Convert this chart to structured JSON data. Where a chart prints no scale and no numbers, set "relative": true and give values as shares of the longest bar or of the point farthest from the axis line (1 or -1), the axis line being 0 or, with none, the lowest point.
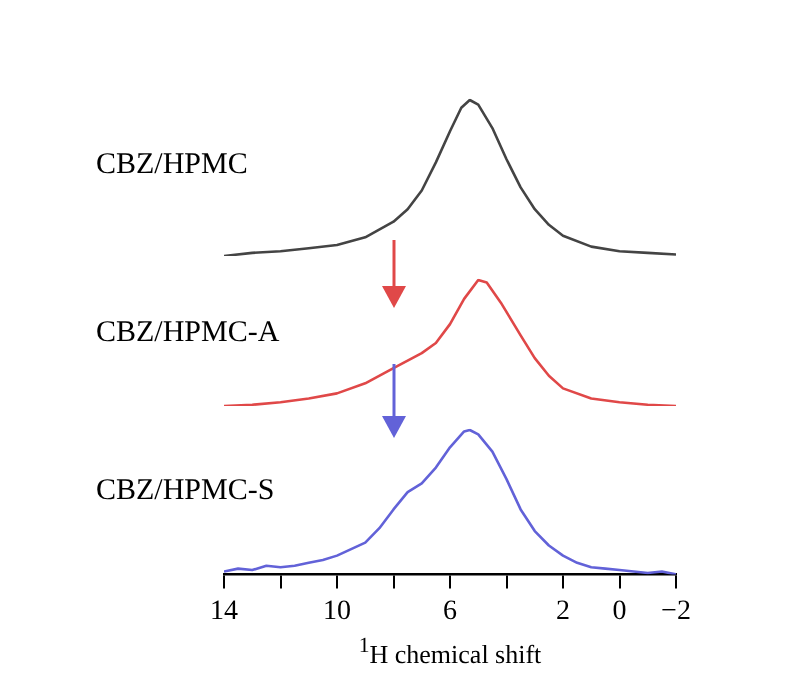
{
  "chart_data": [
    {
      "type": "line",
      "relative": true,
      "xlim": [
        14,
        -2
      ],
      "tick_labels": false,
      "x": [
        14,
        13,
        12,
        11,
        10,
        9,
        8,
        7.5,
        7,
        6.5,
        6,
        5.6,
        5.3,
        5,
        4.5,
        4,
        3.5,
        3,
        2.5,
        2,
        1,
        0,
        -1,
        -2
      ],
      "series": [
        {
          "name": "CBZ/HPMC",
          "color": "#444444",
          "values": [
            0,
            0.02,
            0.03,
            0.05,
            0.07,
            0.12,
            0.22,
            0.3,
            0.42,
            0.6,
            0.8,
            0.95,
            1,
            0.97,
            0.82,
            0.62,
            0.44,
            0.3,
            0.2,
            0.13,
            0.06,
            0.03,
            0.02,
            0.01
          ]
        }
      ]
    },
    {
      "type": "line",
      "relative": true,
      "xlim": [
        14,
        -2
      ],
      "tick_labels": false,
      "x": [
        14,
        13,
        12,
        11,
        10,
        9,
        8,
        7.5,
        7,
        6.5,
        6,
        5.5,
        5,
        4.7,
        4.2,
        3.5,
        3,
        2.5,
        2,
        1,
        0,
        -1,
        -2
      ],
      "series": [
        {
          "name": "CBZ/HPMC-A",
          "color": "#e04848",
          "values": [
            0,
            0.01,
            0.03,
            0.06,
            0.1,
            0.18,
            0.3,
            0.36,
            0.42,
            0.5,
            0.65,
            0.85,
            1,
            0.98,
            0.82,
            0.56,
            0.38,
            0.24,
            0.14,
            0.06,
            0.03,
            0.01,
            0
          ]
        }
      ]
    },
    {
      "type": "line",
      "relative": true,
      "xlim": [
        14,
        -2
      ],
      "tick_labels": "x",
      "xlabel": "$^{1}$H chemical shift",
      "xticks": [
        14,
        {
          "value": 12,
          "label": null
        },
        10,
        {
          "value": 8,
          "label": null
        },
        6,
        {
          "value": 4,
          "label": null
        },
        2,
        0,
        {
          "value": -2,
          "label": "−2"
        }
      ],
      "x": [
        14,
        13.5,
        13,
        12.5,
        12,
        11.5,
        11,
        10.5,
        10,
        9,
        8.5,
        8,
        7.5,
        7,
        6.5,
        6,
        5.5,
        5.3,
        5,
        4.5,
        4,
        3.5,
        3,
        2.5,
        2,
        1.5,
        1,
        0.5,
        0,
        -1,
        -1.5,
        -2
      ],
      "series": [
        {
          "name": "CBZ/HPMC-S",
          "color": "#6262d8",
          "values": [
            0.02,
            0.04,
            0.03,
            0.06,
            0.05,
            0.06,
            0.08,
            0.1,
            0.13,
            0.22,
            0.32,
            0.45,
            0.57,
            0.63,
            0.74,
            0.88,
            0.99,
            1,
            0.97,
            0.85,
            0.66,
            0.45,
            0.3,
            0.2,
            0.13,
            0.08,
            0.05,
            0.04,
            0.03,
            0.01,
            0.02,
            0
          ]
        }
      ]
    }
  ]
}
